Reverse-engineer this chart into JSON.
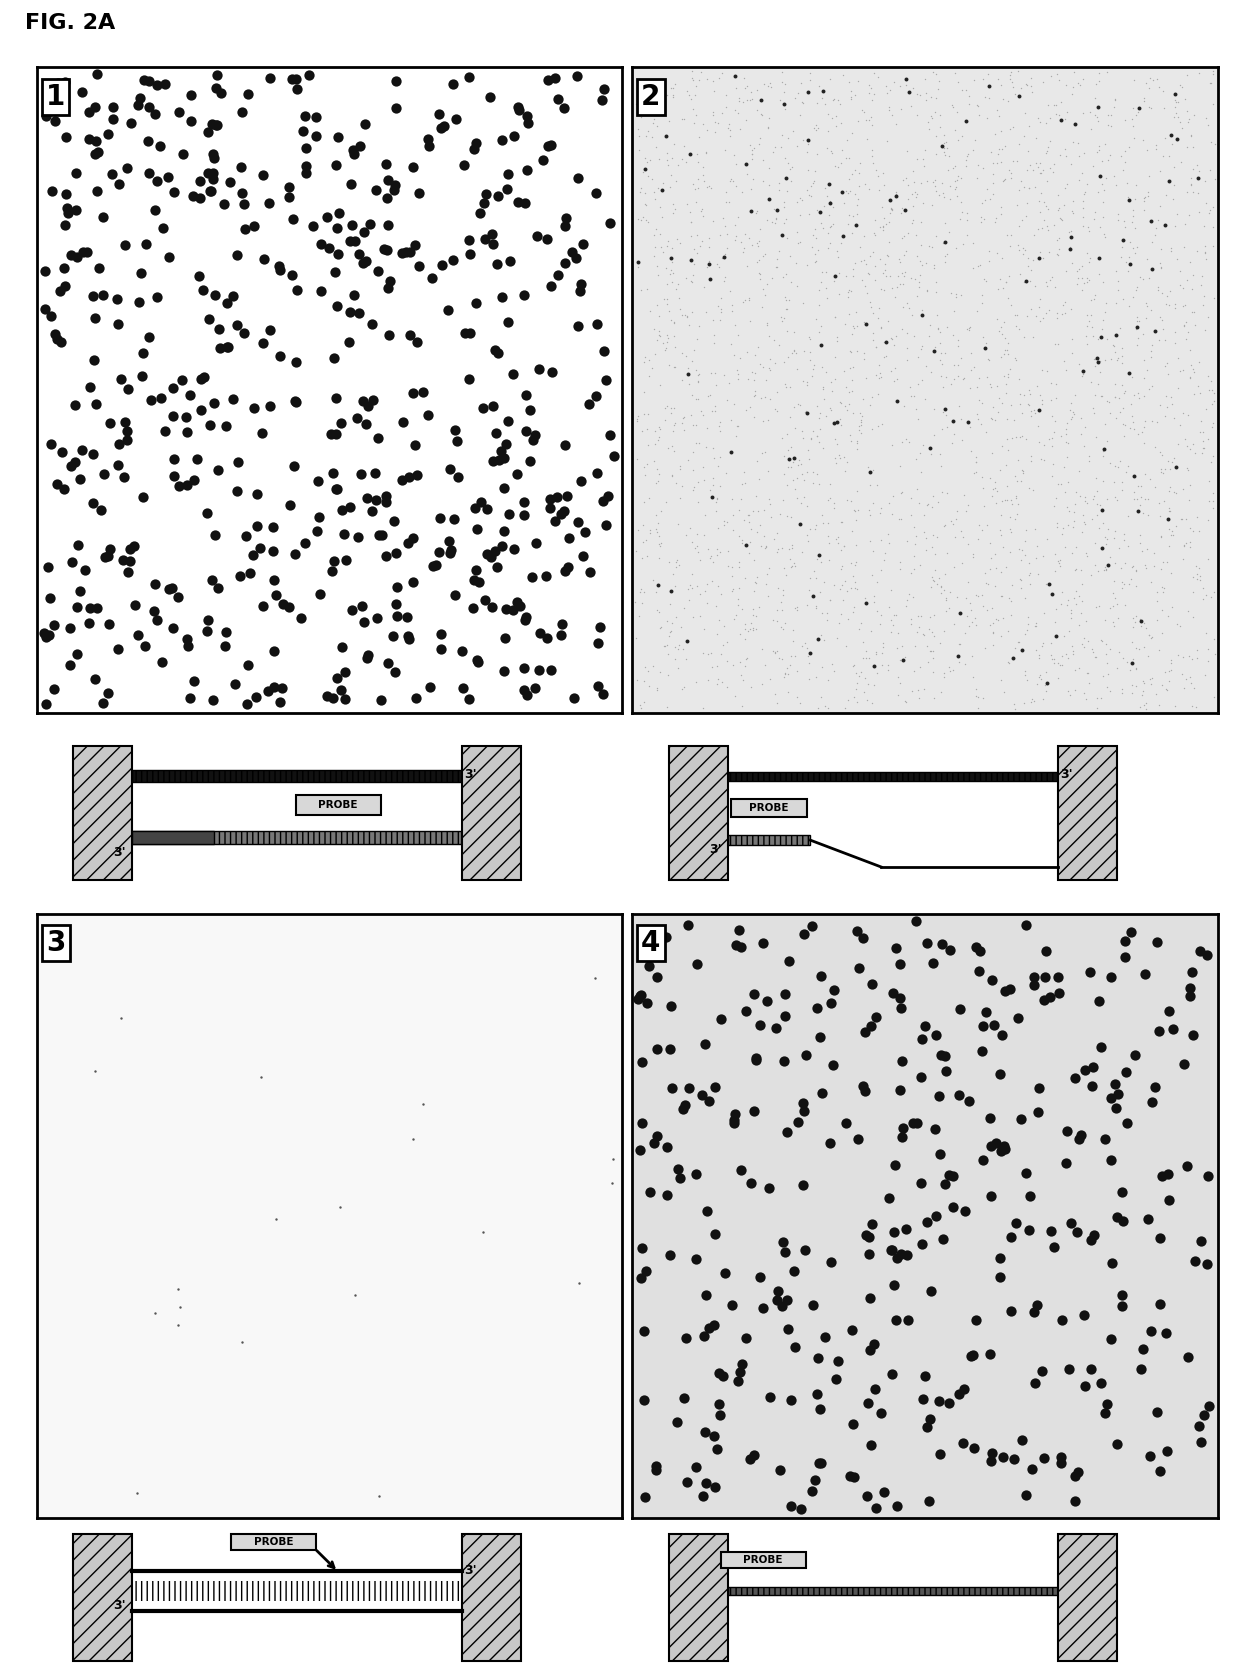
{
  "title": "FIG. 2A",
  "title_fontsize": 16,
  "title_fontweight": "bold",
  "bg_color": "#ffffff",
  "panel_bg_1": "#ffffff",
  "panel_bg_2": "#e8e8e8",
  "panel_bg_3": "#f8f8f8",
  "panel_bg_4": "#e0e0e0",
  "panel_labels": [
    "1",
    "2",
    "3",
    "4"
  ],
  "n_dots_1": 600,
  "n_dots_2": 120,
  "n_noise_2": 3000,
  "n_dots_3": 20,
  "n_dots_4": 380,
  "dot_size_1": 55,
  "dot_size_2": 8,
  "noise_size_2": 1,
  "dot_size_3": 3,
  "dot_size_4": 55,
  "dot_color_1": "#111111",
  "dot_color_2": "#222222",
  "noise_color_2": "#aaaaaa",
  "dot_color_3": "#555555",
  "dot_color_4": "#111111",
  "pillar_color": "#c8c8c8",
  "pillar_hatch": "//",
  "strand_color_top": "#111111",
  "strand_color_bottom": "#555555",
  "probe_fc": "#d8d8d8",
  "probe_label": "PROBE"
}
